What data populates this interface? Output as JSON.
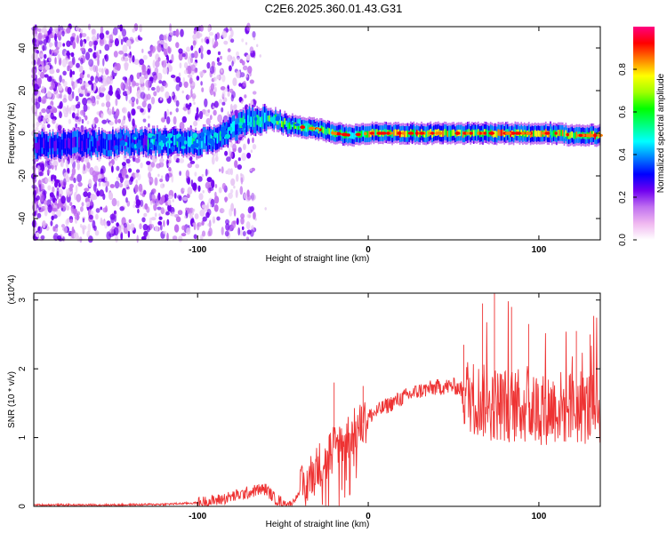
{
  "title": "C2E6.2025.360.01.43.G31",
  "chart_data": [
    {
      "type": "heatmap",
      "title": "C2E6.2025.360.01.43.G31",
      "xlabel": "Height of straight line (km)",
      "ylabel": "Frequency (Hz)",
      "xlim": [
        -196,
        136
      ],
      "ylim": [
        -50,
        50
      ],
      "xticks": [
        -100,
        0,
        100
      ],
      "xtick_labels": [
        "-100",
        "0",
        "100"
      ],
      "yticks": [
        -40,
        -20,
        0,
        20,
        40
      ],
      "ytick_labels": [
        "-40",
        "-20",
        "0",
        "20",
        "40"
      ],
      "colorbar": {
        "label": "Normalized spectral amplitude",
        "range": [
          0,
          1
        ],
        "ticks": [
          0,
          0.2,
          0.4,
          0.6,
          0.8
        ],
        "tick_labels": [
          "0.0",
          "0.2",
          "0.4",
          "0.6",
          "0.8"
        ],
        "colors": [
          "#ffffff",
          "#f0b8f0",
          "#c070f0",
          "#7000f0",
          "#0000ff",
          "#0080ff",
          "#00ffff",
          "#00ff80",
          "#00ff00",
          "#a0ff00",
          "#ffff00",
          "#ff8000",
          "#ff0000",
          "#ff0080"
        ]
      },
      "ridge": {
        "x": [
          -196,
          -170,
          -140,
          -120,
          -100,
          -90,
          -80,
          -70,
          -60,
          -50,
          -40,
          -30,
          -20,
          -10,
          0,
          10,
          20,
          30,
          40,
          50,
          60,
          70,
          80,
          90,
          100,
          110,
          120,
          136
        ],
        "y": [
          -6,
          -5,
          -4,
          -4,
          -4,
          -2,
          2,
          6,
          7,
          5,
          3,
          2,
          0,
          -1,
          0,
          0,
          0,
          0,
          0,
          0,
          0,
          0,
          0,
          0,
          0,
          0,
          -1,
          -1
        ]
      }
    },
    {
      "type": "line",
      "xlabel": "Height of straight line (km)",
      "ylabel": "SNR (10 * v/v)",
      "yscale_label": "(x10^4)",
      "xlim": [
        -196,
        136
      ],
      "ylim": [
        0,
        3.1
      ],
      "xticks": [
        -100,
        0,
        100
      ],
      "xtick_labels": [
        "-100",
        "0",
        "100"
      ],
      "yticks": [
        0,
        1,
        2,
        3
      ],
      "ytick_labels": [
        "0",
        "1",
        "2",
        "3"
      ],
      "color": "#ee3333",
      "envelope": {
        "x": [
          -196,
          -150,
          -120,
          -100,
          -90,
          -80,
          -70,
          -65,
          -60,
          -55,
          -50,
          -45,
          -40,
          -35,
          -30,
          -25,
          -20,
          -15,
          -10,
          -5,
          0,
          10,
          20,
          30,
          40,
          50,
          55,
          60,
          70,
          80,
          90,
          100,
          110,
          120,
          136
        ],
        "y": [
          0.02,
          0.02,
          0.03,
          0.05,
          0.08,
          0.14,
          0.2,
          0.24,
          0.25,
          0.12,
          0.05,
          0.04,
          0.2,
          0.4,
          0.55,
          0.75,
          0.85,
          0.95,
          1.05,
          1.15,
          1.3,
          1.45,
          1.58,
          1.68,
          1.73,
          1.75,
          1.7,
          1.6,
          1.5,
          1.48,
          1.45,
          1.42,
          1.45,
          1.42,
          1.45
        ]
      },
      "peaks": [
        {
          "x": 74,
          "y": 3.1
        },
        {
          "x": 67,
          "y": 2.95
        },
        {
          "x": 84,
          "y": 2.9
        },
        {
          "x": 94,
          "y": 2.65
        },
        {
          "x": 122,
          "y": 2.55
        },
        {
          "x": 130,
          "y": 2.5
        },
        {
          "x": 56,
          "y": 2.35
        },
        {
          "x": -20,
          "y": 1.8
        },
        {
          "x": -3,
          "y": 1.75
        }
      ]
    }
  ]
}
